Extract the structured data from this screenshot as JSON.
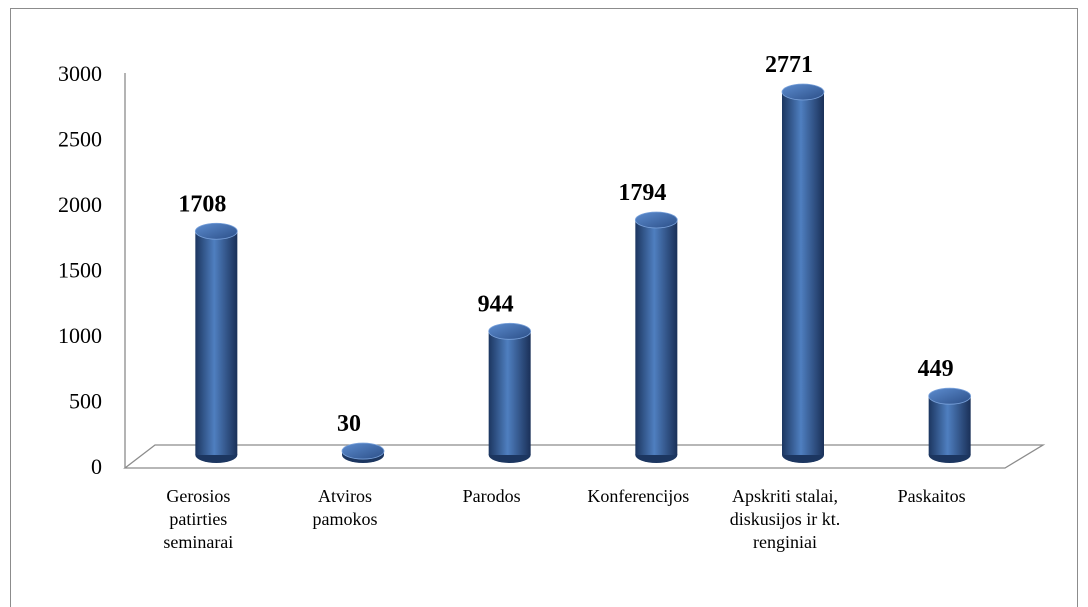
{
  "chart_data": {
    "type": "bar",
    "categories": [
      "Gerosios patirties seminarai",
      "Atviros pamokos",
      "Parodos",
      "Konferencijos",
      "Apskriti stalai, diskusijos ir kt. renginiai",
      "Paskaitos"
    ],
    "values": [
      1708,
      30,
      944,
      1794,
      2771,
      449
    ],
    "color": "#3a66a8",
    "ylim": [
      0,
      3000
    ],
    "yticks": [
      0,
      500,
      1000,
      1500,
      2000,
      2500,
      3000
    ],
    "grid": false
  }
}
